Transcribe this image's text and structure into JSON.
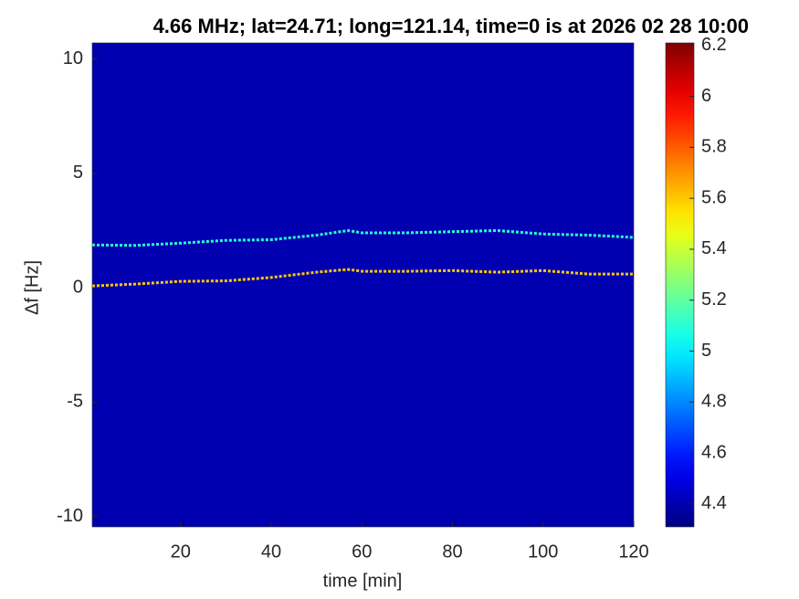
{
  "chart_data": {
    "type": "spectrogram",
    "title": "4.66 MHz;  lat=24.71; long=121.14, time=0 is at 2026 02 28 10:00",
    "xlabel": "time [min]",
    "ylabel": "Δf [Hz]",
    "xlim": [
      0.5,
      120
    ],
    "xticks": [
      20,
      40,
      60,
      80,
      100,
      120
    ],
    "ylim": [
      -10.45,
      10.7
    ],
    "yticks": [
      -10,
      -5,
      0,
      5,
      10
    ],
    "colormap": "jet",
    "clim": [
      4.31,
      6.21
    ],
    "cticks": [
      4.4,
      4.6,
      4.8,
      5,
      5.2,
      5.4,
      5.6,
      5.8,
      6,
      6.2
    ],
    "background_z": 4.4,
    "x": [
      0.5,
      10,
      20,
      30,
      40,
      50,
      57,
      60,
      70,
      80,
      90,
      100,
      110,
      120
    ],
    "series": [
      {
        "level": 5.1,
        "values": [
          1.87,
          1.85,
          1.95,
          2.07,
          2.1,
          2.3,
          2.5,
          2.4,
          2.4,
          2.45,
          2.5,
          2.35,
          2.3,
          2.2
        ]
      },
      {
        "level": 5.6,
        "values": [
          0.08,
          0.16,
          0.28,
          0.3,
          0.45,
          0.68,
          0.8,
          0.72,
          0.72,
          0.75,
          0.68,
          0.75,
          0.6,
          0.6
        ]
      }
    ]
  }
}
